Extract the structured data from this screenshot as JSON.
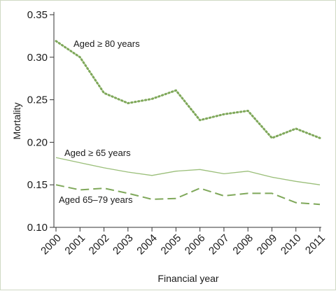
{
  "chart_data": {
    "type": "line",
    "title": "",
    "xlabel": "Financial year",
    "ylabel": "Mortality",
    "ylim": [
      0.1,
      0.35
    ],
    "yticks": [
      "0.10",
      "0.15",
      "0.20",
      "0.25",
      "0.30",
      "0.35"
    ],
    "categories": [
      "2000",
      "2001",
      "2002",
      "2003",
      "2004",
      "2005",
      "2006",
      "2007",
      "2008",
      "2009",
      "2010",
      "2011"
    ],
    "grid": false,
    "series": [
      {
        "name": "Aged ≥ 80 years",
        "style": "dotted",
        "color": "#7fa85a",
        "values": [
          0.319,
          0.3,
          0.258,
          0.246,
          0.251,
          0.261,
          0.226,
          0.233,
          0.237,
          0.205,
          0.216,
          0.205
        ]
      },
      {
        "name": "Aged ≥ 65 years",
        "style": "solid",
        "color": "#9bbf7a",
        "values": [
          0.182,
          0.176,
          0.17,
          0.165,
          0.161,
          0.166,
          0.168,
          0.163,
          0.166,
          0.159,
          0.154,
          0.15
        ]
      },
      {
        "name": "Aged 65–79 years",
        "style": "dashed",
        "color": "#7fa85a",
        "values": [
          0.15,
          0.144,
          0.146,
          0.14,
          0.133,
          0.134,
          0.146,
          0.137,
          0.14,
          0.14,
          0.129,
          0.127
        ]
      }
    ]
  }
}
